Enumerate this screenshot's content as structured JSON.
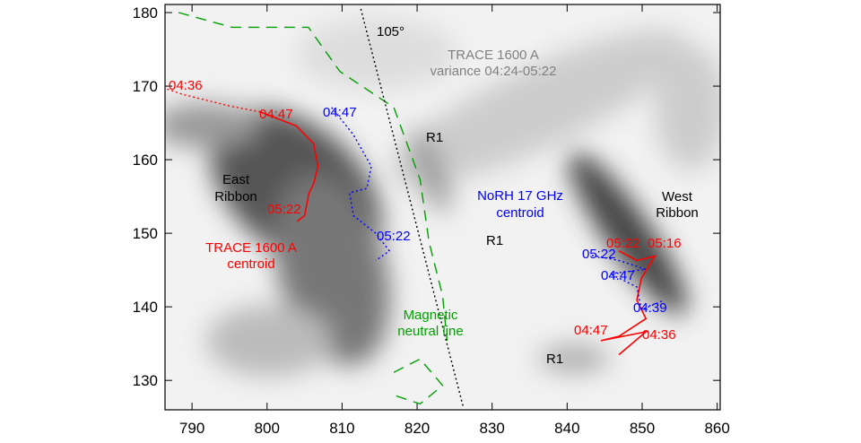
{
  "chart_data": {
    "type": "line",
    "xlim": [
      786.4,
      860.4
    ],
    "ylim": [
      126.0,
      181.1
    ],
    "xticks": [
      790,
      800,
      810,
      820,
      830,
      840,
      850,
      860
    ],
    "yticks": [
      130,
      140,
      150,
      160,
      170,
      180
    ],
    "series": [
      {
        "color": "#ff0000",
        "style": "dotted",
        "x": [
          786.7,
          788.7,
          795.0,
          799.1
        ],
        "values": [
          169.6,
          168.9,
          167.3,
          166.5
        ]
      },
      {
        "color": "#ff0000",
        "style": "solid",
        "x": [
          799.1,
          803.9,
          806.2,
          806.8,
          806.2,
          805.6,
          805.0,
          804.0
        ],
        "values": [
          166.5,
          164.6,
          162.2,
          159.1,
          156.7,
          155.5,
          152.4,
          151.6
        ]
      },
      {
        "color": "#0000ff",
        "style": "dotted",
        "x": [
          808.6,
          811.5,
          813.9,
          813.3,
          811.0,
          811.5,
          814.5,
          816.3,
          814.5
        ],
        "values": [
          167.1,
          163.4,
          159.1,
          156.1,
          155.5,
          152.4,
          150.0,
          147.6,
          146.3
        ]
      },
      {
        "color": "#ff0000",
        "style": "solid",
        "x": [
          846.9,
          849.3,
          851.7,
          849.9,
          849.3,
          850.5,
          846.9,
          844.5,
          850.5,
          846.9
        ],
        "values": [
          147.6,
          146.3,
          146.9,
          143.9,
          140.9,
          138.4,
          136.0,
          135.4,
          136.6,
          133.5
        ]
      },
      {
        "color": "#0000ff",
        "style": "dotted",
        "x": [
          843.3,
          846.9,
          850.5,
          845.7,
          849.3,
          849.9,
          852.9
        ],
        "values": [
          147.0,
          146.3,
          145.1,
          144.5,
          142.7,
          139.6,
          140.9
        ]
      },
      {
        "color": "#00a000",
        "style": "dashed",
        "x": [
          788.2,
          795.3,
          805.5,
          809.7,
          816.9,
          820.4,
          821.6,
          823.4,
          824.0,
          null,
          816.9,
          820.4,
          823.4,
          820.4,
          816.9
        ],
        "values": [
          180.0,
          178.0,
          178.0,
          172.0,
          167.1,
          157.3,
          148.8,
          141.5,
          135.4,
          null,
          131.1,
          132.9,
          129.3,
          126.8,
          128.0
        ]
      },
      {
        "color": "#000000",
        "style": "dotted",
        "x": [
          812.5,
          826.2
        ],
        "values": [
          180.5,
          126.2
        ]
      }
    ],
    "annotations": [
      {
        "text": "105°",
        "color": "#000000"
      },
      {
        "text": "TRACE 1600 A",
        "color": "#808080"
      },
      {
        "text": "variance 04:24-05:22",
        "color": "#808080"
      },
      {
        "text": "04:36",
        "color": "#ff0000"
      },
      {
        "text": "04:47",
        "color": "#ff0000"
      },
      {
        "text": "04:47",
        "color": "#0000ff"
      },
      {
        "text": "R1",
        "color": "#000000"
      },
      {
        "text": "East",
        "color": "#000000"
      },
      {
        "text": "Ribbon",
        "color": "#000000"
      },
      {
        "text": "05:22",
        "color": "#ff0000"
      },
      {
        "text": "NoRH 17 GHz",
        "color": "#0000ff"
      },
      {
        "text": "centroid",
        "color": "#0000ff"
      },
      {
        "text": "West",
        "color": "#000000"
      },
      {
        "text": "Ribbon",
        "color": "#000000"
      },
      {
        "text": "05:22",
        "color": "#0000ff"
      },
      {
        "text": "TRACE 1600 A",
        "color": "#ff0000"
      },
      {
        "text": "centroid",
        "color": "#ff0000"
      },
      {
        "text": "R1",
        "color": "#000000"
      },
      {
        "text": "05:22",
        "color": "#0000ff"
      },
      {
        "text": "05:22",
        "color": "#ff0000"
      },
      {
        "text": "05:16",
        "color": "#ff0000"
      },
      {
        "text": "04:47",
        "color": "#0000ff"
      },
      {
        "text": "04:39",
        "color": "#0000ff"
      },
      {
        "text": "Magnetic",
        "color": "#00a000"
      },
      {
        "text": "neutral line",
        "color": "#00a000"
      },
      {
        "text": "04:47",
        "color": "#ff0000"
      },
      {
        "text": "04:36",
        "color": "#ff0000"
      },
      {
        "text": "R1",
        "color": "#000000"
      }
    ]
  }
}
